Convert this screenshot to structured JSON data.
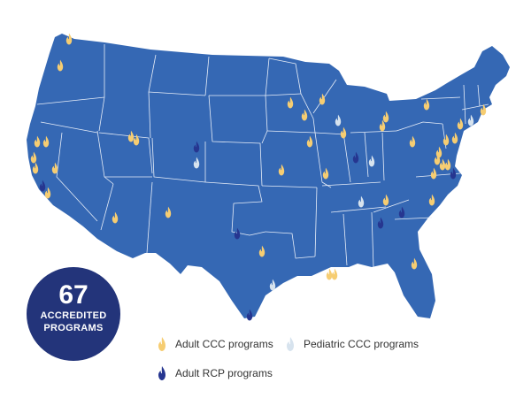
{
  "badge": {
    "count": "67",
    "line1": "ACCREDITED",
    "line2": "PROGRAMS"
  },
  "colors": {
    "land": "#3568b4",
    "border": "#e8eef8",
    "adult_ccc": "#f6cd72",
    "pediatric_ccc": "#d7e3ee",
    "adult_rcp": "#263690",
    "badge": "#23347a"
  },
  "legend": [
    {
      "key": "adult_ccc",
      "label": "Adult CCC programs",
      "icon": "flame-icon"
    },
    {
      "key": "pediatric_ccc",
      "label": "Pediatric CCC programs",
      "icon": "flame-icon"
    },
    {
      "key": "adult_rcp",
      "label": "Adult RCP programs",
      "icon": "flame-icon"
    }
  ]
}
